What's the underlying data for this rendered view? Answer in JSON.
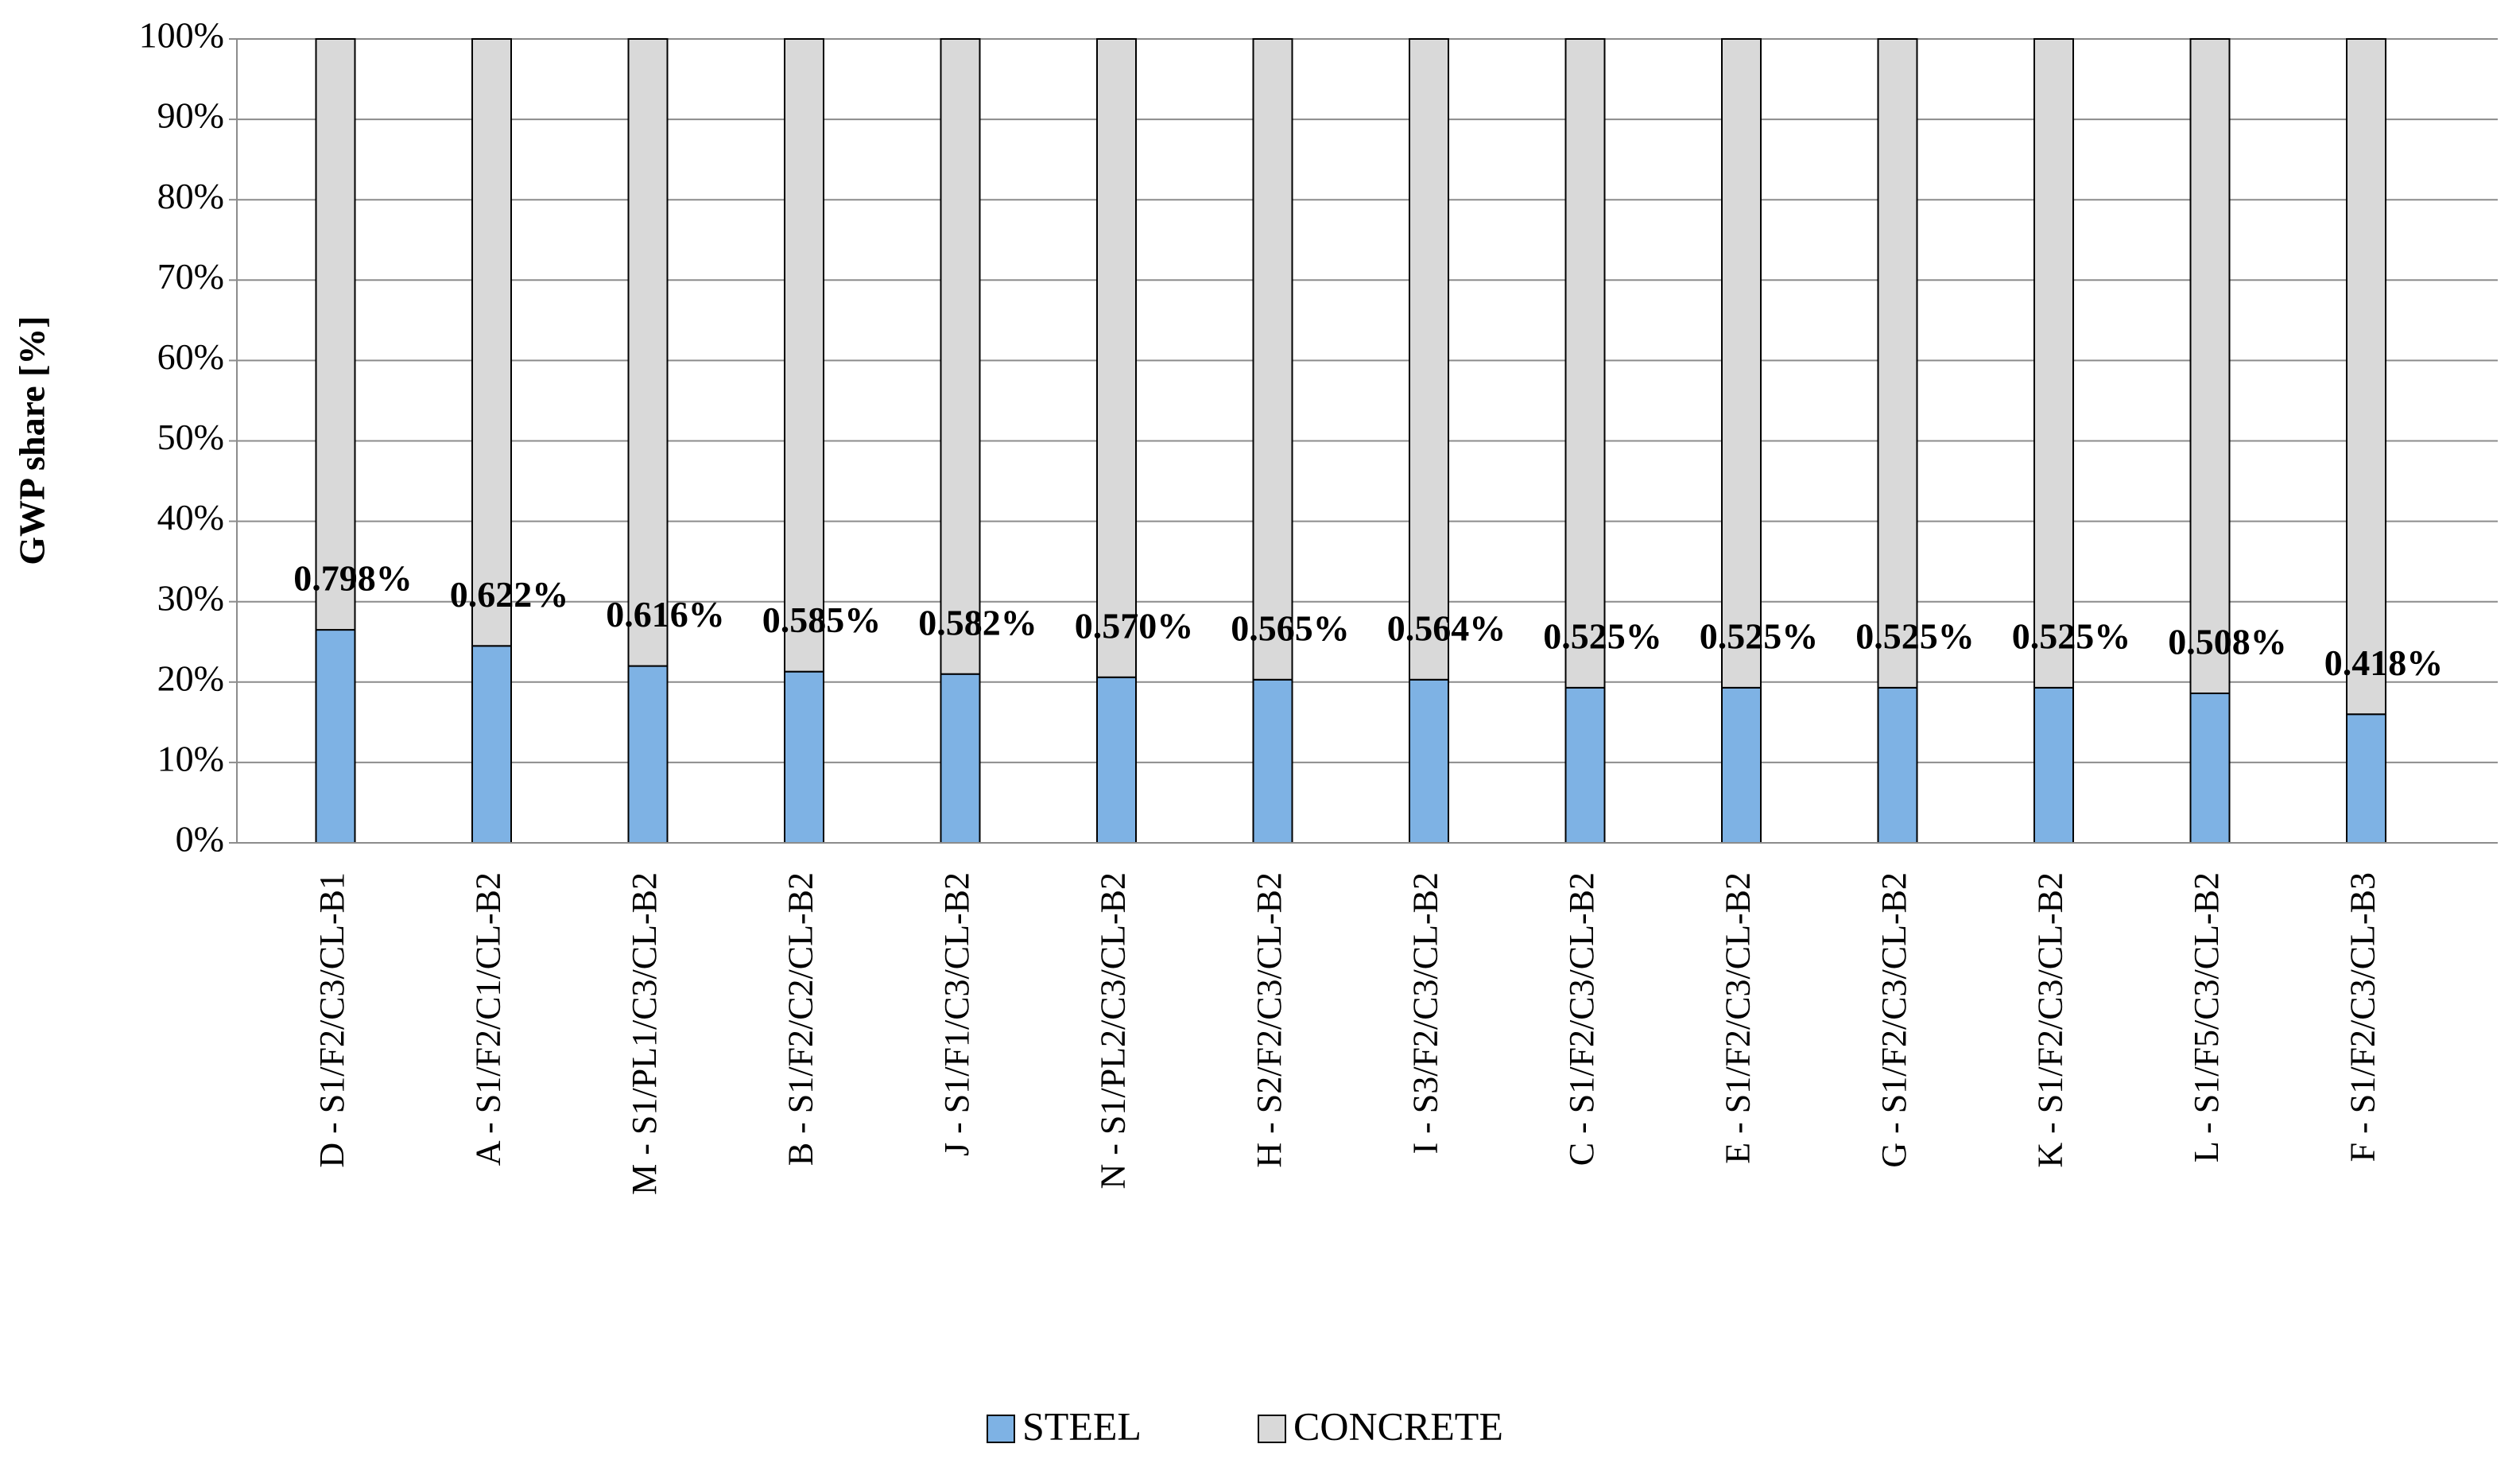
{
  "chart_data": {
    "type": "stacked_bar_100",
    "y_label": "GWP share [%]",
    "categories": [
      "D - S1/F2/C3/CL-B1",
      "A - S1/F2/C1/CL-B2",
      "M - S1/PL1/C3/CL-B2",
      "B - S1/F2/C2/CL-B2",
      "J - S1/F1/C3/CL-B2",
      "N - S1/PL2/C3/CL-B2",
      "H - S2/F2/C3/CL-B2",
      "I - S3/F2/C3/CL-B2",
      "C - S1/F2/C3/CL-B2",
      "E - S1/F2/C3/CL-B2",
      "G - S1/F2/C3/CL-B2",
      "K - S1/F2/C3/CL-B2",
      "L - S1/F5/C3/CL-B2",
      "F - S1/F2/C3/CL-B3"
    ],
    "series": [
      {
        "name": "STEEL",
        "color": "#7eb2e4",
        "values": [
          26.5,
          24.5,
          22,
          21.3,
          21,
          20.6,
          20.3,
          20.3,
          19.3,
          19.3,
          19.3,
          19.3,
          18.6,
          16
        ]
      },
      {
        "name": "CONCRETE",
        "color": "#d9d9d9",
        "values": [
          73.5,
          75.5,
          78,
          78.7,
          79,
          79.4,
          79.7,
          79.7,
          80.7,
          80.7,
          80.7,
          80.7,
          81.4,
          84
        ]
      }
    ],
    "annotations": [
      "0.798%",
      "0.622%",
      "0.616%",
      "0.585%",
      "0.582%",
      "0.570%",
      "0.565%",
      "0.564%",
      "0.525%",
      "0.525%",
      "0.525%",
      "0.525%",
      "0.508%",
      "0.418%"
    ],
    "ylim": [
      0,
      100
    ],
    "yticks": [
      {
        "value": 0,
        "label": "0%"
      },
      {
        "value": 10,
        "label": "10%"
      },
      {
        "value": 20,
        "label": "20%"
      },
      {
        "value": 30,
        "label": "30%"
      },
      {
        "value": 40,
        "label": "40%"
      },
      {
        "value": 50,
        "label": "50%"
      },
      {
        "value": 60,
        "label": "60%"
      },
      {
        "value": 70,
        "label": "70%"
      },
      {
        "value": 80,
        "label": "80%"
      },
      {
        "value": 90,
        "label": "90%"
      },
      {
        "value": 100,
        "label": "100%"
      }
    ],
    "grid": true,
    "legend": "bottom"
  }
}
